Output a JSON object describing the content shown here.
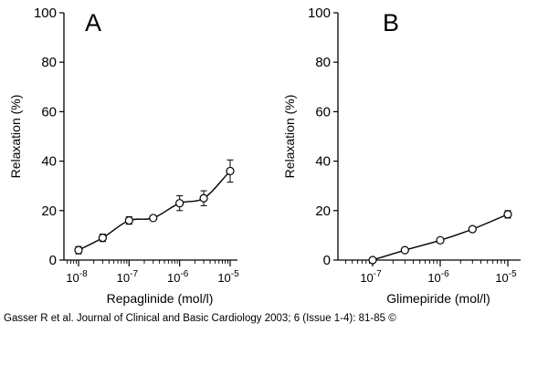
{
  "caption": "Gasser R et al. Journal of Clinical and Basic Cardiology 2003; 6 (Issue 1-4): 81-85 ©",
  "chart_data": [
    {
      "type": "line",
      "panel_label": "A",
      "xlabel": "Repaglinide (mol/l)",
      "ylabel": "Relaxation (%)",
      "x_scale": "log",
      "xlim": [
        1e-08,
        1e-05
      ],
      "ylim": [
        0,
        100
      ],
      "x_ticks": [
        {
          "value": 1e-08,
          "base": "10",
          "exp": "-8"
        },
        {
          "value": 1e-07,
          "base": "10",
          "exp": "-7"
        },
        {
          "value": 1e-06,
          "base": "10",
          "exp": "-6"
        },
        {
          "value": 1e-05,
          "base": "10",
          "exp": "-5"
        }
      ],
      "y_ticks": [
        0,
        20,
        40,
        60,
        80,
        100
      ],
      "x": [
        1e-08,
        3e-08,
        1e-07,
        3e-07,
        1e-06,
        3e-06,
        1e-05
      ],
      "y": [
        4,
        9,
        16,
        17,
        23,
        25,
        36
      ],
      "error": [
        1.5,
        1.5,
        1.5,
        1,
        3,
        3,
        4.5
      ],
      "grid": false
    },
    {
      "type": "line",
      "panel_label": "B",
      "xlabel": "Glimepiride (mol/l)",
      "ylabel": "Relaxation (%)",
      "x_scale": "log",
      "xlim": [
        1e-07,
        1e-05
      ],
      "ylim": [
        0,
        100
      ],
      "x_ticks": [
        {
          "value": 1e-07,
          "base": "10",
          "exp": "-7"
        },
        {
          "value": 1e-06,
          "base": "10",
          "exp": "-6"
        },
        {
          "value": 1e-05,
          "base": "10",
          "exp": "-5"
        }
      ],
      "y_ticks": [
        0,
        20,
        40,
        60,
        80,
        100
      ],
      "x": [
        1e-07,
        3e-07,
        1e-06,
        3e-06,
        1e-05
      ],
      "y": [
        0,
        4,
        8,
        12.5,
        18.5
      ],
      "error": [
        0.5,
        0.8,
        1,
        1,
        1.5
      ],
      "grid": false
    }
  ]
}
